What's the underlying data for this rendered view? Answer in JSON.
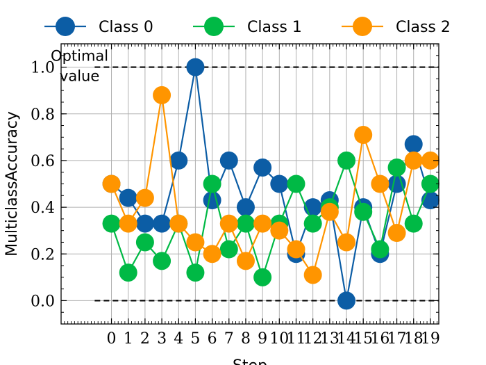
{
  "colors": {
    "background": "#ffffff",
    "grid": "#b0b0b0",
    "axis": "#000000",
    "reference": "#000000"
  },
  "chart_data": {
    "type": "line",
    "title": "",
    "xlabel": "Step",
    "ylabel": "MulticlassAccuracy",
    "xlim": [
      -3,
      19.5
    ],
    "ylim": [
      -0.1,
      1.1
    ],
    "grid": true,
    "legend_position": "top",
    "x": [
      0,
      1,
      2,
      3,
      4,
      5,
      6,
      7,
      8,
      9,
      10,
      11,
      12,
      13,
      14,
      15,
      16,
      17,
      18,
      19
    ],
    "x_tick_labels": [
      "0",
      "1",
      "2",
      "3",
      "4",
      "5",
      "6",
      "7",
      "8",
      "9",
      "10",
      "11",
      "12",
      "13",
      "14",
      "15",
      "16",
      "17",
      "18",
      "19"
    ],
    "y_ticks": [
      0.0,
      0.2,
      0.4,
      0.6,
      0.8,
      1.0
    ],
    "y_tick_labels": [
      "0.0",
      "0.2",
      "0.4",
      "0.6",
      "0.8",
      "1.0"
    ],
    "reference_lines": [
      {
        "y": 1.0,
        "x_range": [
          -1,
          19.5
        ],
        "style": "dashed"
      },
      {
        "y": 0.0,
        "x_range": [
          -1,
          19.5
        ],
        "style": "dashed"
      }
    ],
    "annotation": {
      "text_lines": [
        "Optimal",
        "value"
      ],
      "x": -1.9,
      "y": 1.0
    },
    "series": [
      {
        "name": "Class 0",
        "color": "#0C5DA5",
        "values": [
          0.5,
          0.44,
          0.33,
          0.33,
          0.6,
          1.0,
          0.43,
          0.6,
          0.4,
          0.57,
          0.5,
          0.2,
          0.4,
          0.43,
          0.0,
          0.4,
          0.2,
          0.5,
          0.67,
          0.43
        ]
      },
      {
        "name": "Class 1",
        "color": "#00B945",
        "values": [
          0.33,
          0.12,
          0.25,
          0.17,
          0.33,
          0.12,
          0.5,
          0.22,
          0.33,
          0.1,
          0.33,
          0.5,
          0.33,
          0.4,
          0.6,
          0.38,
          0.22,
          0.57,
          0.33,
          0.5
        ]
      },
      {
        "name": "Class 2",
        "color": "#FF9500",
        "values": [
          0.5,
          0.33,
          0.44,
          0.88,
          0.33,
          0.25,
          0.2,
          0.33,
          0.17,
          0.33,
          0.3,
          0.22,
          0.11,
          0.38,
          0.25,
          0.71,
          0.5,
          0.29,
          0.6,
          0.6
        ]
      }
    ]
  }
}
